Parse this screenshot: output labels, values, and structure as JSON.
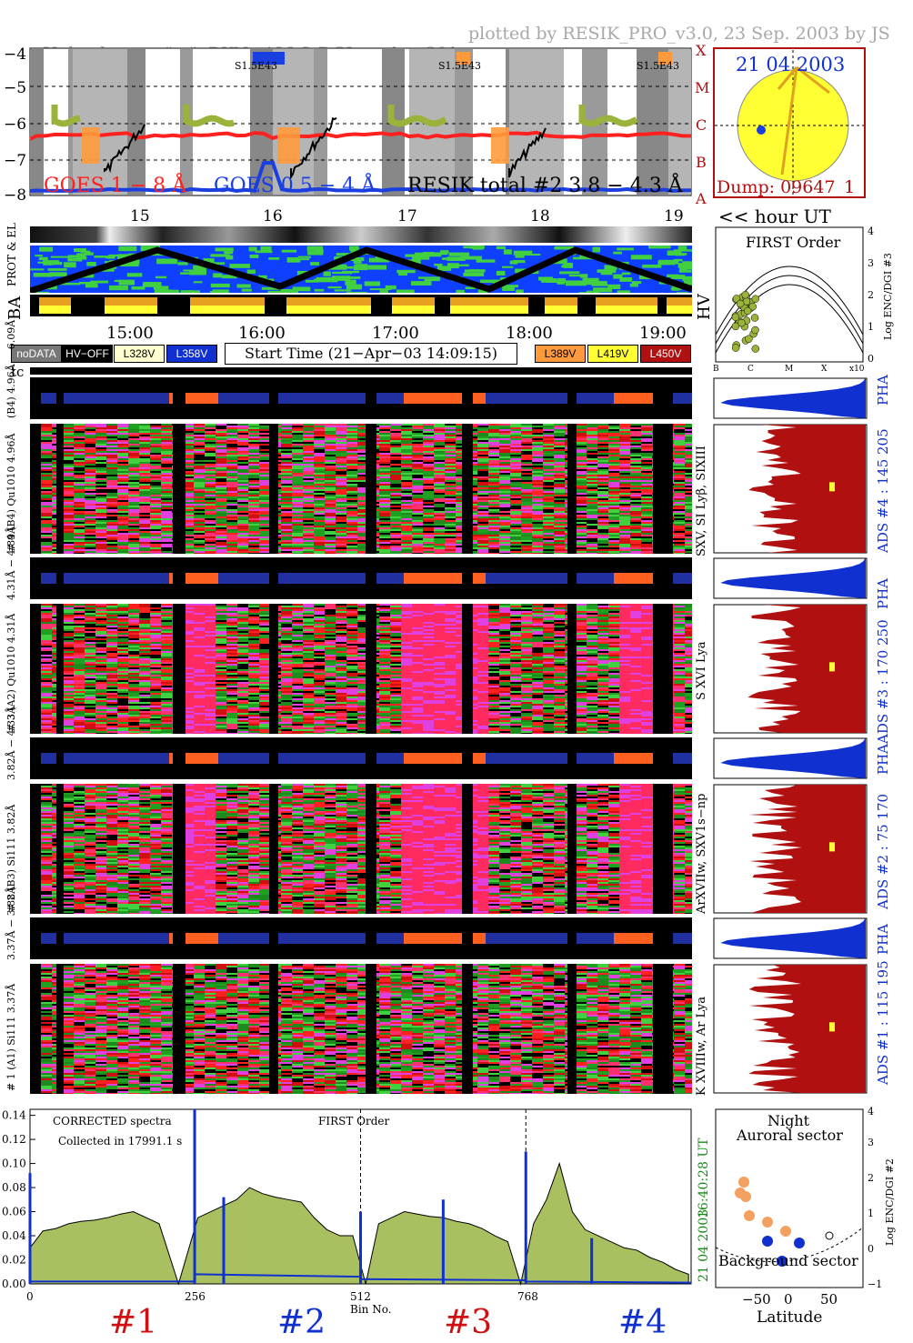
{
  "header": {
    "left": "Upload ver = \"m\", DYN−ALLO DGI =   1 ÷ 301 s",
    "right": "plotted by RESIK_PRO_v3.0, 23 Sep. 2003 by JS"
  },
  "goes": {
    "ytick_labels": [
      "−4",
      "−5",
      "−6",
      "−7",
      "−8"
    ],
    "class_labels": [
      "A",
      "B",
      "C",
      "M",
      "X"
    ],
    "legend_goes1": "GOES 1 − 8 Å",
    "legend_goes2": "GOES 0.5 − 4 Å",
    "legend_resik": "RESIK total #2  3.8 − 4.3 Å",
    "saa_labels": [
      "S1.5E43",
      "S1.5E43",
      "S1.5E43"
    ],
    "colors": {
      "goes_long": "#ff2020",
      "goes_short": "#1a3fe0",
      "resik": "#000000",
      "flare_green": "#9ab33a",
      "flare_orange": "#ff9a3c"
    }
  },
  "sun": {
    "date": "21 04 2003",
    "dump": "Dump: 09647_1",
    "colors": {
      "disk": "#ffff33",
      "frame": "#b01010",
      "date": "#1030d0",
      "arrow": "#e0a020"
    }
  },
  "hour_axis": {
    "labels": [
      "15",
      "16",
      "17",
      "18",
      "19"
    ],
    "unit": "<< hour UT"
  },
  "status": {
    "prot_label": "PROT & EL",
    "ba_label": "BA",
    "hv_label": "HV"
  },
  "first_order": {
    "title": "FIRST Order",
    "ylabel": "Log ENC/DGI #3",
    "xlabels": [
      "B",
      "C",
      "M",
      "X",
      "x10"
    ],
    "yticks": [
      "0",
      "1",
      "2",
      "3",
      "4"
    ]
  },
  "time_axis": {
    "labels": [
      "15:00",
      "16:00",
      "17:00",
      "18:00",
      "19:00"
    ]
  },
  "legend": {
    "nodata": "noDATA",
    "hvoff": "HV−OFF",
    "v1": "L328V",
    "v2": "L358V",
    "start": "Start Time (21−Apr−03 14:09:15)",
    "v3": "L389V",
    "v4": "L419V",
    "v5": "L450V"
  },
  "tc_label": "tc",
  "channels": [
    {
      "pha_range": "(B4) 4.96Å − 6.09Å",
      "main_label": "# 4 (B4) Qu1010 4.96Å",
      "right_label": "SXV, SI Lyβ, SIXIII",
      "ads": "ADS #4 :   145 205",
      "pha": "PHA"
    },
    {
      "pha_range": "4.31Å − 4.89Å",
      "main_label": "# 3 (A2) Qu1010  4.31Å",
      "right_label": "S XVI Lya",
      "ads": "ADS #3 :   170 250",
      "pha": "PHA"
    },
    {
      "pha_range": "3.82Å − 4.33Å",
      "main_label": "# 2 (B3) Si111  3.82Å",
      "right_label": "ArXVIIw, SXV1s−np",
      "ads": "ADS #2 :   75 170",
      "pha": "PHA"
    },
    {
      "pha_range": "3.37Å − 3.88Å",
      "main_label": "# 1 (A1) Si111  3.37Å",
      "right_label": "K XVIIIw, Ar Lya",
      "ads": "ADS #1 :   115 195",
      "pha": "PHA"
    }
  ],
  "spectrum": {
    "title": "CORRECTED spectra",
    "collected": "Collected in 17991.1 s",
    "first_order": "FIRST Order",
    "yticks": [
      "0.00",
      "0.02",
      "0.04",
      "0.06",
      "0.08",
      "0.10",
      "0.12",
      "0.14"
    ],
    "xticks": [
      "0",
      "256",
      "512",
      "768"
    ],
    "xlabel": "Bin No.",
    "time_label": "16:40:28 UT",
    "date_label": "21 04 2003",
    "channel_labels": [
      "#1",
      "#2",
      "#3",
      "#4"
    ],
    "channel_colors": [
      "#d01010",
      "#1030d0",
      "#d01010",
      "#1030d0"
    ]
  },
  "latitude": {
    "night": "Night",
    "auroral": "Auroral sector",
    "background": "Background sector",
    "xlabel": "Latitude",
    "xticks": [
      "−50",
      "0",
      "50"
    ],
    "ylabel": "Log ENC/DGI #2",
    "yticks": [
      "−1",
      "0",
      "1",
      "2",
      "3",
      "4"
    ]
  },
  "chart_data": {
    "type": "line",
    "title": "CORRECTED spectra",
    "xlabel": "Bin No.",
    "ylabel": "",
    "xlim": [
      0,
      1024
    ],
    "ylim": [
      0,
      0.145
    ],
    "channel_boundaries": [
      256,
      512,
      768
    ],
    "series": [
      {
        "name": "spectrum",
        "x": [
          0,
          20,
          40,
          60,
          80,
          100,
          120,
          140,
          160,
          180,
          200,
          230,
          260,
          280,
          300,
          320,
          340,
          360,
          380,
          400,
          420,
          440,
          460,
          480,
          500,
          520,
          540,
          560,
          580,
          600,
          620,
          640,
          660,
          680,
          700,
          720,
          740,
          760,
          780,
          800,
          820,
          840,
          860,
          880,
          900,
          920,
          940,
          960,
          980,
          1000,
          1020
        ],
        "y": [
          0.03,
          0.044,
          0.046,
          0.05,
          0.052,
          0.053,
          0.055,
          0.058,
          0.06,
          0.055,
          0.05,
          0.0,
          0.055,
          0.06,
          0.065,
          0.07,
          0.08,
          0.075,
          0.072,
          0.07,
          0.068,
          0.055,
          0.045,
          0.04,
          0.04,
          0.0,
          0.05,
          0.055,
          0.06,
          0.058,
          0.056,
          0.055,
          0.052,
          0.05,
          0.046,
          0.04,
          0.035,
          0.0,
          0.05,
          0.07,
          0.1,
          0.06,
          0.045,
          0.04,
          0.035,
          0.03,
          0.028,
          0.022,
          0.018,
          0.012,
          0.008
        ]
      },
      {
        "name": "background",
        "x": [
          0,
          255,
          256,
          511,
          512,
          767,
          768,
          1023
        ],
        "y": [
          0.002,
          0.002,
          0.008,
          0.006,
          0.004,
          0.003,
          0.002,
          0.001
        ]
      }
    ]
  }
}
